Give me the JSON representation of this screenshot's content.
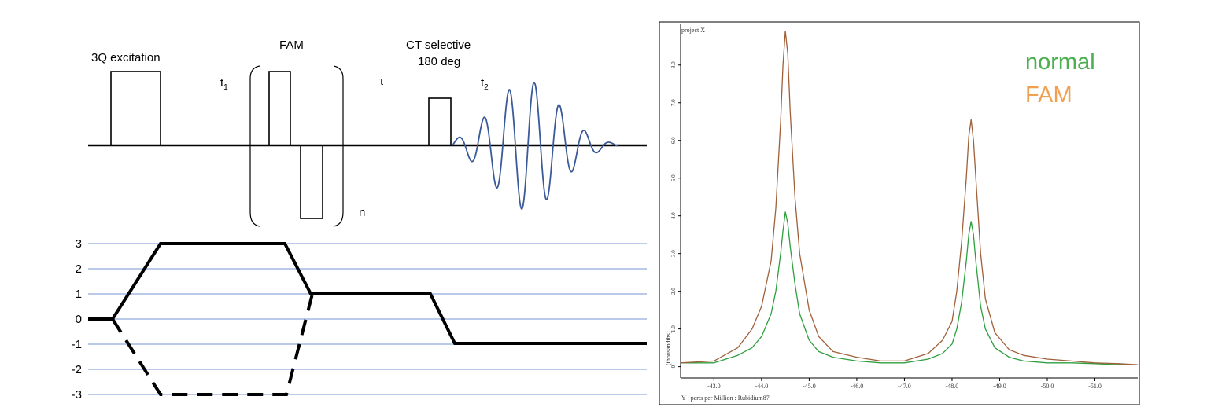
{
  "pulse_sequence": {
    "labels": {
      "excitation": "3Q excitation",
      "fam": "FAM",
      "ct_line1": "CT selective",
      "ct_line2": "180 deg",
      "t1": "t",
      "t1_sub": "1",
      "tau": "τ",
      "t2": "t",
      "t2_sub": "2",
      "repeat": "n"
    },
    "fid_color": "#3b5a9a"
  },
  "coherence_pathway": {
    "levels": [
      "3",
      "2",
      "1",
      "0",
      "-1",
      "-2",
      "-3"
    ],
    "gridline_color": "#4a72c4"
  },
  "chart_data": {
    "type": "line",
    "title": "project X",
    "xlabel": "Y : parts per Million : Rubidium87",
    "ylabel": "(thousandths)",
    "x_ticks": [
      "-43.0",
      "-44.0",
      "-45.0",
      "-46.0",
      "-47.0",
      "-48.0",
      "-49.0",
      "-50.0",
      "-51.0"
    ],
    "y_ticks": [
      "0",
      "1.0",
      "2.0",
      "3.0",
      "4.0",
      "5.0",
      "6.0",
      "7.0",
      "8.0"
    ],
    "xlim": [
      -42.3,
      -51.9
    ],
    "ylim": [
      -0.3,
      9.1
    ],
    "series": [
      {
        "name": "normal",
        "color": "#2e9e3e",
        "x": [
          -42.3,
          -43.0,
          -43.5,
          -43.8,
          -44.0,
          -44.2,
          -44.3,
          -44.4,
          -44.45,
          -44.5,
          -44.55,
          -44.6,
          -44.7,
          -44.8,
          -45.0,
          -45.2,
          -45.5,
          -46.0,
          -46.5,
          -47.0,
          -47.5,
          -47.8,
          -48.0,
          -48.1,
          -48.2,
          -48.3,
          -48.35,
          -48.4,
          -48.45,
          -48.5,
          -48.6,
          -48.7,
          -48.9,
          -49.2,
          -49.5,
          -50.0,
          -50.5,
          -51.0,
          -51.5,
          -51.9
        ],
        "y": [
          0.1,
          0.1,
          0.3,
          0.5,
          0.8,
          1.4,
          2.0,
          3.0,
          3.6,
          4.1,
          3.8,
          3.2,
          2.2,
          1.4,
          0.7,
          0.4,
          0.25,
          0.15,
          0.1,
          0.1,
          0.2,
          0.35,
          0.6,
          1.0,
          1.7,
          2.8,
          3.5,
          3.85,
          3.5,
          2.8,
          1.6,
          1.0,
          0.5,
          0.25,
          0.15,
          0.1,
          0.1,
          0.08,
          0.05,
          0.05
        ]
      },
      {
        "name": "FAM",
        "color": "#a0603a",
        "x": [
          -42.3,
          -43.0,
          -43.5,
          -43.8,
          -44.0,
          -44.2,
          -44.3,
          -44.4,
          -44.45,
          -44.5,
          -44.55,
          -44.6,
          -44.7,
          -44.8,
          -45.0,
          -45.2,
          -45.5,
          -46.0,
          -46.5,
          -47.0,
          -47.5,
          -47.8,
          -48.0,
          -48.1,
          -48.2,
          -48.3,
          -48.35,
          -48.4,
          -48.45,
          -48.5,
          -48.6,
          -48.7,
          -48.9,
          -49.2,
          -49.5,
          -50.0,
          -50.5,
          -51.0,
          -51.5,
          -51.9
        ],
        "y": [
          0.1,
          0.15,
          0.5,
          1.0,
          1.6,
          2.8,
          4.2,
          6.5,
          8.0,
          8.9,
          8.3,
          6.8,
          4.5,
          3.0,
          1.5,
          0.8,
          0.4,
          0.25,
          0.15,
          0.15,
          0.35,
          0.7,
          1.2,
          2.0,
          3.3,
          5.0,
          6.1,
          6.55,
          6.0,
          5.0,
          3.0,
          1.8,
          0.9,
          0.45,
          0.3,
          0.2,
          0.15,
          0.1,
          0.08,
          0.05
        ]
      }
    ],
    "legend": {
      "position": "top-right",
      "entries": [
        {
          "label": "normal",
          "color": "#4caf50"
        },
        {
          "label": "FAM",
          "color": "#f0a050"
        }
      ]
    }
  }
}
